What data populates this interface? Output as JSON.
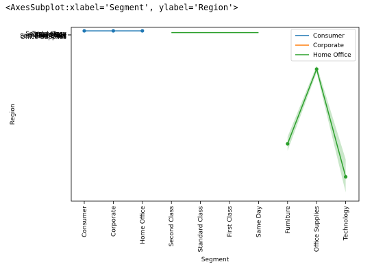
{
  "repr_text": "<AxesSubplot:xlabel='Segment', ylabel='Region'>",
  "chart_data": {
    "type": "line",
    "xlabel": "Segment",
    "ylabel": "Region",
    "x_categories": [
      "Consumer",
      "Corporate",
      "Home Office",
      "Second Class",
      "Standard Class",
      "First Class",
      "Same Day",
      "Furniture",
      "Office Supplies",
      "Technology"
    ],
    "y_tick_labels": [
      "Office Supplies",
      "Furniture",
      "Technology",
      "Consumer",
      "Corporate",
      "Home Office",
      "First Class",
      "Second Class",
      "Standard Class",
      "Same Day"
    ],
    "y_domain": [
      0,
      1
    ],
    "series": [
      {
        "name": "Consumer",
        "color": "#1f77b4",
        "marker": "circle",
        "points": [
          {
            "x": "Consumer",
            "y": 0.98
          },
          {
            "x": "Corporate",
            "y": 0.98
          },
          {
            "x": "Home Office",
            "y": 0.98
          }
        ]
      },
      {
        "name": "Corporate",
        "color": "#ff7f0e",
        "marker": "none",
        "points": []
      },
      {
        "name": "Home Office",
        "color": "#2ca02c",
        "marker": "none",
        "points": [
          {
            "x": "Second Class",
            "y": 0.97
          },
          {
            "x": "Standard Class",
            "y": 0.97
          },
          {
            "x": "First Class",
            "y": 0.97
          },
          {
            "x": "Same Day",
            "y": 0.97
          }
        ]
      },
      {
        "name": "Home Office",
        "color": "#2ca02c",
        "marker": "circle",
        "points": [
          {
            "x": "Furniture",
            "y": 0.33,
            "lo": 0.29,
            "hi": 0.37
          },
          {
            "x": "Office Supplies",
            "y": 0.76,
            "lo": 0.74,
            "hi": 0.78
          },
          {
            "x": "Technology",
            "y": 0.14,
            "lo": 0.05,
            "hi": 0.24
          }
        ]
      }
    ],
    "legend": {
      "position": "top-right",
      "entries": [
        {
          "label": "Consumer",
          "color": "#1f77b4"
        },
        {
          "label": "Corporate",
          "color": "#ff7f0e"
        },
        {
          "label": "Home Office",
          "color": "#2ca02c"
        }
      ]
    }
  }
}
